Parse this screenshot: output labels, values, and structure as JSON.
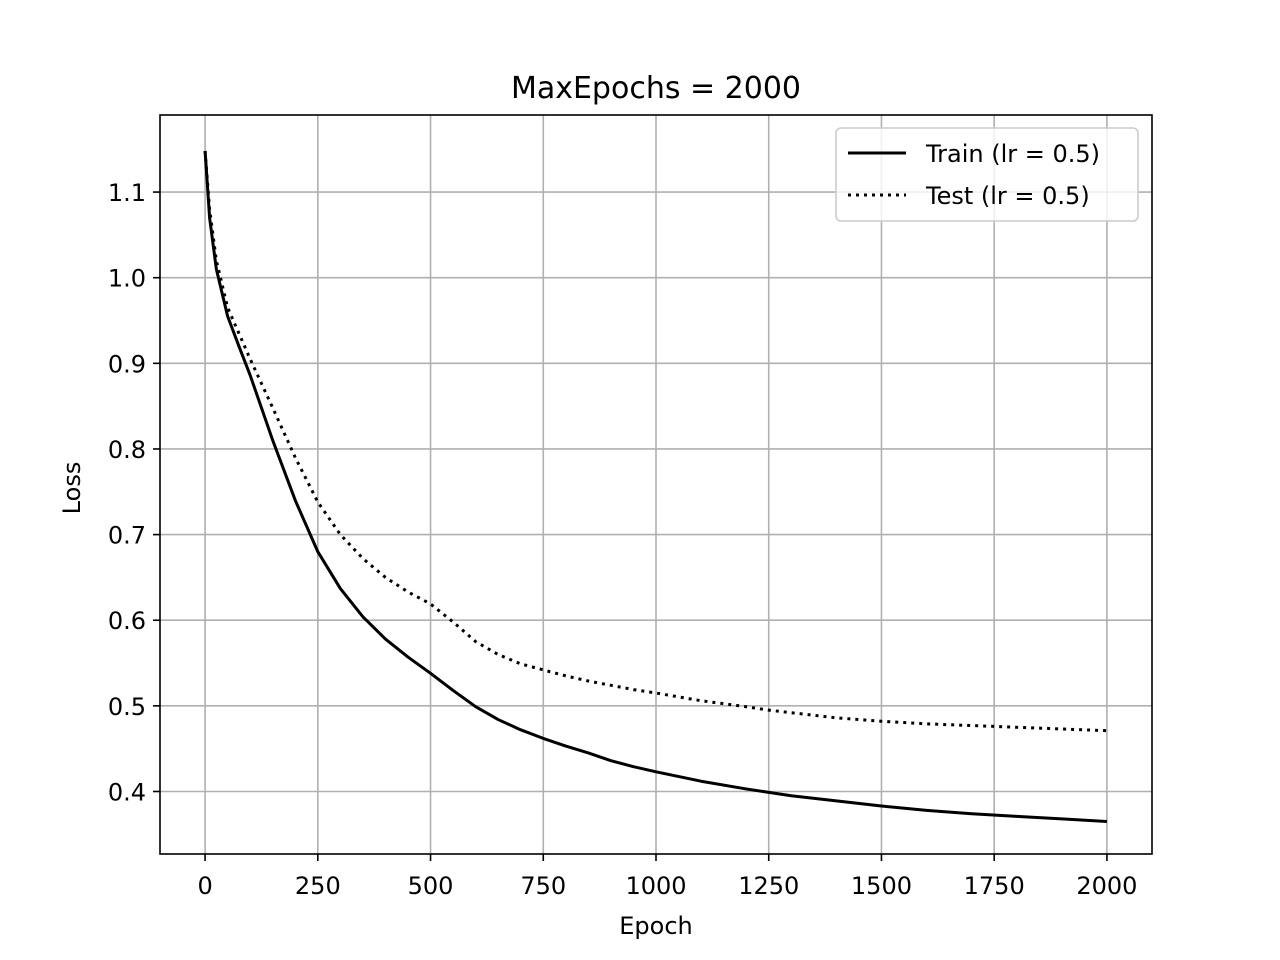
{
  "chart_data": {
    "type": "line",
    "title": "MaxEpochs = 2000",
    "xlabel": "Epoch",
    "ylabel": "Loss",
    "xlim": [
      -100,
      2100
    ],
    "ylim": [
      0.327,
      1.19
    ],
    "grid": true,
    "legend_position": "top-right",
    "x_ticks": [
      0,
      250,
      500,
      750,
      1000,
      1250,
      1500,
      1750,
      2000
    ],
    "y_ticks": [
      0.4,
      0.5,
      0.6,
      0.7,
      0.8,
      0.9,
      1.0,
      1.1
    ],
    "series": [
      {
        "name": "Train (lr = 0.5)",
        "style": "solid",
        "color": "#000000",
        "x": [
          0,
          10,
          25,
          50,
          75,
          100,
          150,
          200,
          250,
          300,
          350,
          400,
          450,
          500,
          550,
          600,
          650,
          700,
          750,
          800,
          850,
          900,
          950,
          1000,
          1100,
          1200,
          1250,
          1300,
          1400,
          1500,
          1600,
          1700,
          1800,
          1900,
          2000
        ],
        "y": [
          1.148,
          1.07,
          1.01,
          0.955,
          0.92,
          0.886,
          0.81,
          0.74,
          0.68,
          0.637,
          0.604,
          0.578,
          0.557,
          0.538,
          0.518,
          0.499,
          0.484,
          0.472,
          0.462,
          0.453,
          0.445,
          0.436,
          0.429,
          0.423,
          0.412,
          0.403,
          0.399,
          0.395,
          0.389,
          0.383,
          0.378,
          0.374,
          0.371,
          0.368,
          0.365
        ]
      },
      {
        "name": "Test (lr = 0.5)",
        "style": "dotted",
        "color": "#000000",
        "x": [
          0,
          10,
          25,
          50,
          75,
          100,
          150,
          200,
          250,
          300,
          350,
          400,
          450,
          500,
          550,
          600,
          650,
          700,
          750,
          800,
          850,
          900,
          950,
          1000,
          1100,
          1200,
          1250,
          1300,
          1400,
          1500,
          1600,
          1700,
          1800,
          1900,
          2000
        ],
        "y": [
          1.148,
          1.08,
          1.02,
          0.965,
          0.935,
          0.905,
          0.848,
          0.79,
          0.738,
          0.7,
          0.672,
          0.65,
          0.633,
          0.619,
          0.598,
          0.575,
          0.56,
          0.549,
          0.542,
          0.535,
          0.529,
          0.524,
          0.519,
          0.515,
          0.506,
          0.499,
          0.495,
          0.492,
          0.486,
          0.482,
          0.479,
          0.477,
          0.475,
          0.473,
          0.471
        ]
      }
    ]
  }
}
